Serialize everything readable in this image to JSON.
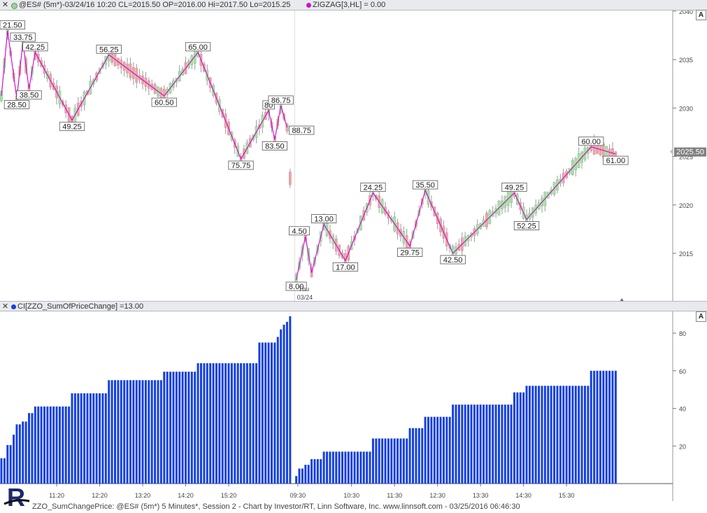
{
  "header": {
    "close": "✕",
    "price_title": "@ES# (5m*)-03/24/16 10:20 CL=2015.50 OP=2016.00 Hi=2017.50 Lo=2015.25",
    "zigzag_title": "ZIGZAG[3,HL] = 0.00",
    "indicator_title": "CI[ZZO_SumOfPriceChange] =13.00",
    "autoscale": "A"
  },
  "footer": {
    "text": "ZZO_SumChangePrice: @ES# (5m*) 5 Minutes*, Session 2 - Chart by Investor/RT, Linn Software, Inc. www.linnsoft.com - 03/25/2016 06:46:30"
  },
  "colors": {
    "zigzag": "#d010d0",
    "bar": "#1440e0",
    "up_candle": "#a6e3a6",
    "down_candle": "#e8a9a9",
    "last_price_bg": "#808080"
  },
  "chart_data": [
    {
      "type": "line",
      "title": "ZIGZAG[3,HL]",
      "ylim": [
        2011,
        2040
      ],
      "y_ticks": [
        2015,
        2020,
        2025,
        2030,
        2035,
        2040
      ],
      "last_price": "2025.50",
      "x_label_session": [
        "Thu",
        "03/24"
      ],
      "zigzag_points": [
        {
          "i": 0,
          "y": 2031.25
        },
        {
          "i": 2,
          "y": 2038.0
        },
        {
          "i": 5,
          "y": 2031.0
        },
        {
          "i": 7,
          "y": 2036.75
        },
        {
          "i": 9,
          "y": 2032.0
        },
        {
          "i": 11,
          "y": 2035.75
        },
        {
          "i": 23,
          "y": 2028.75
        },
        {
          "i": 35,
          "y": 2035.5
        },
        {
          "i": 53,
          "y": 2031.25
        },
        {
          "i": 64,
          "y": 2035.75
        },
        {
          "i": 78,
          "y": 2024.75
        },
        {
          "i": 87,
          "y": 2029.75
        },
        {
          "i": 89,
          "y": 2026.75
        },
        {
          "i": 91,
          "y": 2030.25
        },
        {
          "i": 93,
          "y": 2028.0
        },
        {
          "i": 96,
          "y": 2012.25
        },
        {
          "i": 99,
          "y": 2016.75
        },
        {
          "i": 101,
          "y": 2013.0
        },
        {
          "i": 105,
          "y": 2018.0
        },
        {
          "i": 112,
          "y": 2014.25
        },
        {
          "i": 121,
          "y": 2021.25
        },
        {
          "i": 133,
          "y": 2015.75
        },
        {
          "i": 138,
          "y": 2021.5
        },
        {
          "i": 147,
          "y": 2015.0
        },
        {
          "i": 167,
          "y": 2021.25
        },
        {
          "i": 171,
          "y": 2018.5
        },
        {
          "i": 192,
          "y": 2026.0
        },
        {
          "i": 200,
          "y": 2025.25
        }
      ],
      "point_labels": [
        {
          "i": 2,
          "y": 2038.0,
          "text": "21.50",
          "pos": "above"
        },
        {
          "i": 5,
          "y": 2031.0,
          "text": "28.50",
          "pos": "below"
        },
        {
          "i": 7,
          "y": 2036.75,
          "text": "33.75",
          "pos": "above"
        },
        {
          "i": 9,
          "y": 2032.0,
          "text": "38.50",
          "pos": "below"
        },
        {
          "i": 11,
          "y": 2035.75,
          "text": "42.25",
          "pos": "above"
        },
        {
          "i": 23,
          "y": 2028.75,
          "text": "49.25",
          "pos": "below"
        },
        {
          "i": 35,
          "y": 2035.5,
          "text": "56.25",
          "pos": "above"
        },
        {
          "i": 53,
          "y": 2031.25,
          "text": "60.50",
          "pos": "below"
        },
        {
          "i": 64,
          "y": 2035.75,
          "text": "65.00",
          "pos": "above"
        },
        {
          "i": 78,
          "y": 2024.75,
          "text": "75.75",
          "pos": "below"
        },
        {
          "i": 87,
          "y": 2029.75,
          "text": "80",
          "pos": "above"
        },
        {
          "i": 89,
          "y": 2026.75,
          "text": "83.50",
          "pos": "below"
        },
        {
          "i": 91,
          "y": 2030.25,
          "text": "86.75",
          "pos": "above"
        },
        {
          "i": 93,
          "y": 2028.0,
          "text": "88.75",
          "pos": "right"
        },
        {
          "i": 96,
          "y": 2012.25,
          "text": "8.00",
          "pos": "below"
        },
        {
          "i": 97,
          "y": 2016.75,
          "text": "4.50",
          "pos": "above"
        },
        {
          "i": 101,
          "y": 2013.0,
          "text": "",
          "pos": "none"
        },
        {
          "i": 105,
          "y": 2018.0,
          "text": "13.00",
          "pos": "above"
        },
        {
          "i": 112,
          "y": 2014.25,
          "text": "17.00",
          "pos": "below"
        },
        {
          "i": 121,
          "y": 2021.25,
          "text": "24.25",
          "pos": "above"
        },
        {
          "i": 133,
          "y": 2015.75,
          "text": "29.75",
          "pos": "below"
        },
        {
          "i": 138,
          "y": 2021.5,
          "text": "35.50",
          "pos": "above"
        },
        {
          "i": 147,
          "y": 2015.0,
          "text": "42.50",
          "pos": "below"
        },
        {
          "i": 167,
          "y": 2021.25,
          "text": "49.25",
          "pos": "above"
        },
        {
          "i": 171,
          "y": 2018.5,
          "text": "52.25",
          "pos": "below"
        },
        {
          "i": 192,
          "y": 2026.0,
          "text": "60.00",
          "pos": "above"
        },
        {
          "i": 200,
          "y": 2025.25,
          "text": "61.00",
          "pos": "below"
        }
      ]
    },
    {
      "type": "bar",
      "title": "CI[ZZO_SumOfPriceChange]",
      "ylim": [
        0,
        88
      ],
      "y_ticks": [
        20,
        40,
        60,
        80
      ],
      "x_ticks": [
        "11:20",
        "12:20",
        "13:20",
        "14:20",
        "15:20",
        "09:30",
        "10:30",
        "11:30",
        "12:30",
        "13:30",
        "14:30",
        "15:30"
      ],
      "segments": [
        {
          "from": 0,
          "to": 1,
          "value": 13.5
        },
        {
          "from": 2,
          "to": 3,
          "value": 20.5
        },
        {
          "from": 4,
          "to": 4,
          "value": 26.0
        },
        {
          "from": 5,
          "to": 6,
          "value": 31.5
        },
        {
          "from": 7,
          "to": 8,
          "value": 33.0
        },
        {
          "from": 9,
          "to": 10,
          "value": 37.5
        },
        {
          "from": 11,
          "to": 22,
          "value": 41.0
        },
        {
          "from": 23,
          "to": 34,
          "value": 48.0
        },
        {
          "from": 35,
          "to": 52,
          "value": 55.0
        },
        {
          "from": 53,
          "to": 63,
          "value": 59.5
        },
        {
          "from": 64,
          "to": 83,
          "value": 64.0
        },
        {
          "from": 84,
          "to": 89,
          "value": 75.0
        },
        {
          "from": 90,
          "to": 90,
          "value": 78.0
        },
        {
          "from": 91,
          "to": 91,
          "value": 82.0
        },
        {
          "from": 92,
          "to": 92,
          "value": 84.5
        },
        {
          "from": 93,
          "to": 93,
          "value": 86.0
        },
        {
          "from": 94,
          "to": 94,
          "value": 89.0
        },
        {
          "from": 96,
          "to": 96,
          "value": 4.0
        },
        {
          "from": 97,
          "to": 98,
          "value": 8.0
        },
        {
          "from": 99,
          "to": 100,
          "value": 10.0
        },
        {
          "from": 101,
          "to": 104,
          "value": 13.0
        },
        {
          "from": 105,
          "to": 111,
          "value": 17.0
        },
        {
          "from": 112,
          "to": 120,
          "value": 17.0
        },
        {
          "from": 121,
          "to": 132,
          "value": 24.0
        },
        {
          "from": 133,
          "to": 137,
          "value": 29.5
        },
        {
          "from": 138,
          "to": 146,
          "value": 35.5
        },
        {
          "from": 147,
          "to": 166,
          "value": 42.0
        },
        {
          "from": 167,
          "to": 170,
          "value": 48.5
        },
        {
          "from": 171,
          "to": 191,
          "value": 52.0
        },
        {
          "from": 192,
          "to": 200,
          "value": 60.0
        }
      ]
    }
  ]
}
